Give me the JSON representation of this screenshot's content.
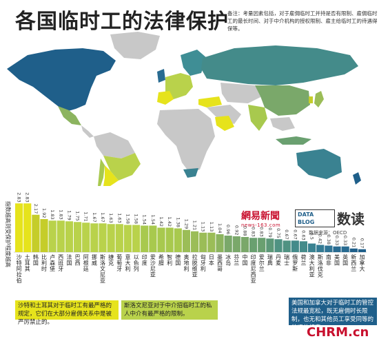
{
  "title": "各国临时工的法律保护",
  "note": "备注：考量因素包括，对于雇佣临时工并持是否有限制、雇佣临时工的最长时间、对于中介机构的授权限制、雇主给临时工的待遇得保等。",
  "logos": {
    "netease_name": "網易新聞",
    "netease_url": "news-163.com",
    "datablog": "DATA BLOG",
    "shudu": "数读"
  },
  "source": "数据来源：OECD",
  "watermark": "CHRM.cn",
  "callouts": [
    "沙特和土耳其对于临时工有最严格的规定，它们在大部分雇佣关系中是被严厉禁止的。",
    "斯洛文尼亚对于中介招临时工的私人中介有最严格的限制。",
    "美国和加拿大对于临时工的管控法规最宽松，既无雇佣时长限制，也无和其他员工享受同等的待遇的规定。"
  ],
  "colors": {
    "strict": "#e6e31c",
    "medium_high": "#b9d24b",
    "medium": "#7aa86a",
    "medium_low": "#3f8e95",
    "loose": "#1f5f8a",
    "no_data": "#c8c8c8",
    "ocean": "#ffffff"
  },
  "chart_data": {
    "type": "bar",
    "ylabel": "指数越高则受保护程度越高",
    "ylim": [
      0,
      3.2
    ],
    "categories": [
      "沙特阿拉伯",
      "土耳其",
      "韩国",
      "比利时",
      "卢森堡",
      "西班牙",
      "法国",
      "巴西",
      "阿根廷",
      "挪威",
      "斯洛文尼亚",
      "捷克",
      "葡萄牙",
      "意大利",
      "以色列",
      "印度",
      "爱沙尼亚",
      "希腊",
      "智利",
      "德国",
      "奥地利",
      "拉脱维亚",
      "匈牙利",
      "日本",
      "墨西哥",
      "冰岛",
      "芬兰",
      "中国",
      "印度尼西亚",
      "爱尔兰",
      "瑞典",
      "丹麦",
      "瑞士",
      "俄罗斯",
      "荷兰",
      "澳大利亚",
      "斯洛伐克",
      "南非",
      "美国",
      "英国",
      "新西兰",
      "加拿大"
    ],
    "values": [
      2.83,
      2.83,
      2.17,
      1.92,
      1.83,
      1.83,
      1.79,
      1.75,
      1.71,
      1.67,
      1.67,
      1.63,
      1.63,
      1.58,
      1.58,
      1.54,
      1.54,
      1.42,
      1.42,
      1.38,
      1.29,
      1.21,
      1.13,
      1.13,
      1.04,
      0.96,
      0.92,
      0.88,
      0.83,
      0.83,
      0.79,
      0.75,
      0.67,
      0.67,
      0.63,
      0.5,
      0.42,
      0.38,
      0.33,
      0.33,
      0.21,
      0.17
    ],
    "value_labels": [
      "2.83",
      "2.83",
      "2.17",
      "1.92",
      "1.83",
      "1.83",
      "1.79",
      "1.75",
      "1.71",
      "1.67",
      "1.67",
      "1.63",
      "1.63",
      "1.58",
      "1.58",
      "1.54",
      "1.54",
      "1.42",
      "1.42",
      "1.38",
      "1.29",
      "1.21",
      "1.13",
      "1.13",
      "1.04",
      "0.96",
      "0.92",
      "0.88",
      "0.83",
      "0.83",
      "0.79",
      "0.75",
      "0.67",
      "0.67",
      "0.63",
      "0.5",
      "0.42",
      "0.38",
      "0.33",
      "0.33",
      "0.21",
      "0.17"
    ],
    "bar_colors": [
      "#e6e31c",
      "#e6e31c",
      "#c5cd2a",
      "#c5cd2a",
      "#b9d24b",
      "#b9d24b",
      "#b9d24b",
      "#b9d24b",
      "#b9d24b",
      "#b9d24b",
      "#b9d24b",
      "#b9d24b",
      "#b9d24b",
      "#b9d24b",
      "#b9d24b",
      "#a8c94e",
      "#a8c94e",
      "#a8c94e",
      "#a8c94e",
      "#a8c94e",
      "#9bbd57",
      "#9bbd57",
      "#9bbd57",
      "#9bbd57",
      "#8cb45f",
      "#7aa86a",
      "#7aa86a",
      "#7aa86a",
      "#6aa070",
      "#6aa070",
      "#5c9878",
      "#4f9282",
      "#4f9282",
      "#448b8a",
      "#448b8a",
      "#3a8291",
      "#347b94",
      "#2f7495",
      "#286b91",
      "#286b91",
      "#1f5f8a",
      "#1f5f8a"
    ]
  }
}
